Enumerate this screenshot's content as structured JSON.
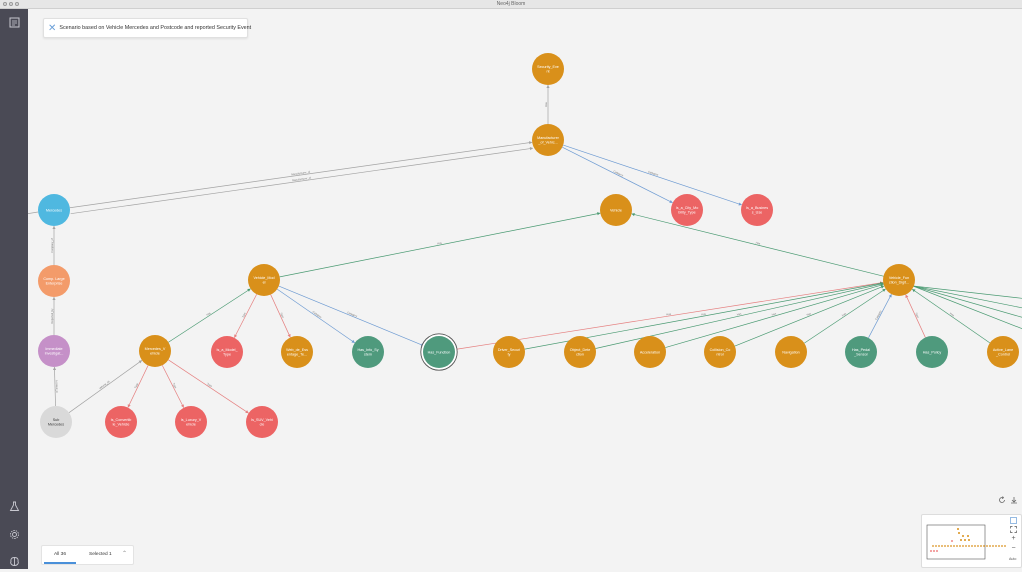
{
  "window": {
    "title": "Neo4j Bloom"
  },
  "sidebar": {
    "items": [
      {
        "name": "perspective-icon"
      },
      {
        "name": "flask-icon"
      },
      {
        "name": "settings-icon"
      },
      {
        "name": "brain-icon"
      }
    ]
  },
  "scenario": {
    "close_icon": "close-icon",
    "text": "Scenario based on Vehicle Mercedes and Postcode and reported Security Event"
  },
  "colors": {
    "orange": "#d9901a",
    "red": "#ec6464",
    "teal": "#4f9a7d",
    "blue": "#4fb8e0",
    "salmon": "#f39b6a",
    "purple": "#c590c8",
    "grey": "#d9d9d9",
    "edge_grey": "#a3a3a3",
    "edge_blue": "#6e9bd2",
    "edge_red": "#e57f7f",
    "edge_green": "#4a9a72"
  },
  "nodes": [
    {
      "id": "sec",
      "label": [
        "Security_Eve",
        "nt"
      ],
      "kind": "orange"
    },
    {
      "id": "manu",
      "label": [
        "Manufacturer",
        "_of_Vehic..."
      ],
      "kind": "orange"
    },
    {
      "id": "veh",
      "label": [
        "Vehicle"
      ],
      "kind": "orange"
    },
    {
      "id": "city",
      "label": [
        "Is_a_City_Mo",
        "bility_Type"
      ],
      "kind": "red"
    },
    {
      "id": "bus",
      "label": [
        "Is_a_Busines",
        "s_Use"
      ],
      "kind": "red"
    },
    {
      "id": "mer",
      "label": [
        "Mercedes"
      ],
      "kind": "blue"
    },
    {
      "id": "cmp",
      "label": [
        "Comp. Large",
        "Enterprise"
      ],
      "kind": "salmon"
    },
    {
      "id": "pur",
      "label": [
        "Immediate",
        "Investigat..."
      ],
      "kind": "purple"
    },
    {
      "id": "pc",
      "label": [
        "Sub",
        "Mercedes"
      ],
      "kind": "grey"
    },
    {
      "id": "vmod",
      "label": [
        "Vehicle_Mod",
        "el"
      ],
      "kind": "orange"
    },
    {
      "id": "vfun",
      "label": [
        "Vehicle_Fun",
        "ction_Digit..."
      ],
      "kind": "orange"
    },
    {
      "id": "mveh",
      "label": [
        "Mercedes_V",
        "ehicle"
      ],
      "kind": "orange"
    },
    {
      "id": "model",
      "label": [
        "Is_a_Model_",
        "Type"
      ],
      "kind": "red"
    },
    {
      "id": "web",
      "label": [
        "Web_de_Ess",
        "entage_Te..."
      ],
      "kind": "orange"
    },
    {
      "id": "info",
      "label": [
        "Has_Info_Sy",
        "stem"
      ],
      "kind": "teal"
    },
    {
      "id": "func",
      "label": [
        "Has_Function"
      ],
      "kind": "teal",
      "selected": true
    },
    {
      "id": "drsec",
      "label": [
        "Driver_Securi",
        "ty"
      ],
      "kind": "orange"
    },
    {
      "id": "obj",
      "label": [
        "Object_Dete",
        "ction"
      ],
      "kind": "orange"
    },
    {
      "id": "acc",
      "label": [
        "Acceleration"
      ],
      "kind": "orange"
    },
    {
      "id": "col",
      "label": [
        "Collision_Co",
        "ntrol"
      ],
      "kind": "orange"
    },
    {
      "id": "nav",
      "label": [
        "Navigation"
      ],
      "kind": "orange"
    },
    {
      "id": "hps",
      "label": [
        "Has_Pedal",
        "_Sensor"
      ],
      "kind": "teal"
    },
    {
      "id": "pol",
      "label": [
        "Has_Policy"
      ],
      "kind": "teal"
    },
    {
      "id": "alc",
      "label": [
        "Active_Lane",
        "_Control"
      ],
      "kind": "orange"
    },
    {
      "id": "conv",
      "label": [
        "Is_Convertib",
        "le_Vehicle"
      ],
      "kind": "red"
    },
    {
      "id": "lux",
      "label": [
        "Is_Luxury_V",
        "ehicle"
      ],
      "kind": "red"
    },
    {
      "id": "suv",
      "label": [
        "Is_SUV_Vehi",
        "cle"
      ],
      "kind": "red"
    }
  ],
  "edges": [
    {
      "from": "manu",
      "to": "sec",
      "label": "Has",
      "color": "grey"
    },
    {
      "from": "mer",
      "to": "manu",
      "label": "Manufacturer_of",
      "color": "grey"
    },
    {
      "from": "mer",
      "to": "manu",
      "label": "Manufacturer_of",
      "color": "grey"
    },
    {
      "from": "manu",
      "to": "city",
      "label": "Category",
      "color": "blue"
    },
    {
      "from": "manu",
      "to": "bus",
      "label": "Category",
      "color": "blue"
    },
    {
      "from": "cmp",
      "to": "mer",
      "label": "Company_of",
      "color": "grey"
    },
    {
      "from": "pur",
      "to": "cmp",
      "label": "Reported_by",
      "color": "grey"
    },
    {
      "from": "pc",
      "to": "pur",
      "label": "Located_in",
      "color": "grey"
    },
    {
      "from": "pc",
      "to": "mveh",
      "label": "Vehicle_Of",
      "color": "grey"
    },
    {
      "from": "vmod",
      "to": "veh",
      "label": "Has",
      "color": "green"
    },
    {
      "from": "vfun",
      "to": "veh",
      "label": "Has",
      "color": "green"
    },
    {
      "from": "mveh",
      "to": "vmod",
      "label": "Has",
      "color": "green"
    },
    {
      "from": "mveh",
      "to": "conv",
      "label": "Type",
      "color": "red"
    },
    {
      "from": "mveh",
      "to": "lux",
      "label": "Type",
      "color": "red"
    },
    {
      "from": "mveh",
      "to": "suv",
      "label": "Type",
      "color": "red"
    },
    {
      "from": "vmod",
      "to": "model",
      "label": "Type",
      "color": "red"
    },
    {
      "from": "vmod",
      "to": "web",
      "label": "Type",
      "color": "red"
    },
    {
      "from": "vmod",
      "to": "info",
      "label": "Category",
      "color": "blue"
    },
    {
      "from": "vmod",
      "to": "func",
      "label": "Category",
      "color": "blue"
    },
    {
      "from": "func",
      "to": "vfun",
      "label": "Has",
      "color": "red"
    },
    {
      "from": "drsec",
      "to": "vfun",
      "label": "Has",
      "color": "green"
    },
    {
      "from": "obj",
      "to": "vfun",
      "label": "Has",
      "color": "green"
    },
    {
      "from": "acc",
      "to": "vfun",
      "label": "Has",
      "color": "green"
    },
    {
      "from": "col",
      "to": "vfun",
      "label": "Has",
      "color": "green"
    },
    {
      "from": "nav",
      "to": "vfun",
      "label": "Has",
      "color": "green"
    },
    {
      "from": "hps",
      "to": "vfun",
      "label": "Category",
      "color": "blue"
    },
    {
      "from": "pol",
      "to": "vfun",
      "label": "Type",
      "color": "red"
    },
    {
      "from": "alc",
      "to": "vfun",
      "label": "Has",
      "color": "green"
    }
  ],
  "bottom_tabs": {
    "all": "All 36",
    "selected": "Selected 1"
  },
  "controls": {
    "refresh": "refresh-icon",
    "export": "export-icon",
    "minimap_toggle": "minimap-icon",
    "zoom_fit": "fit-icon",
    "zoom_in": "+",
    "zoom_out": "−",
    "zoom_label": "Auto"
  }
}
